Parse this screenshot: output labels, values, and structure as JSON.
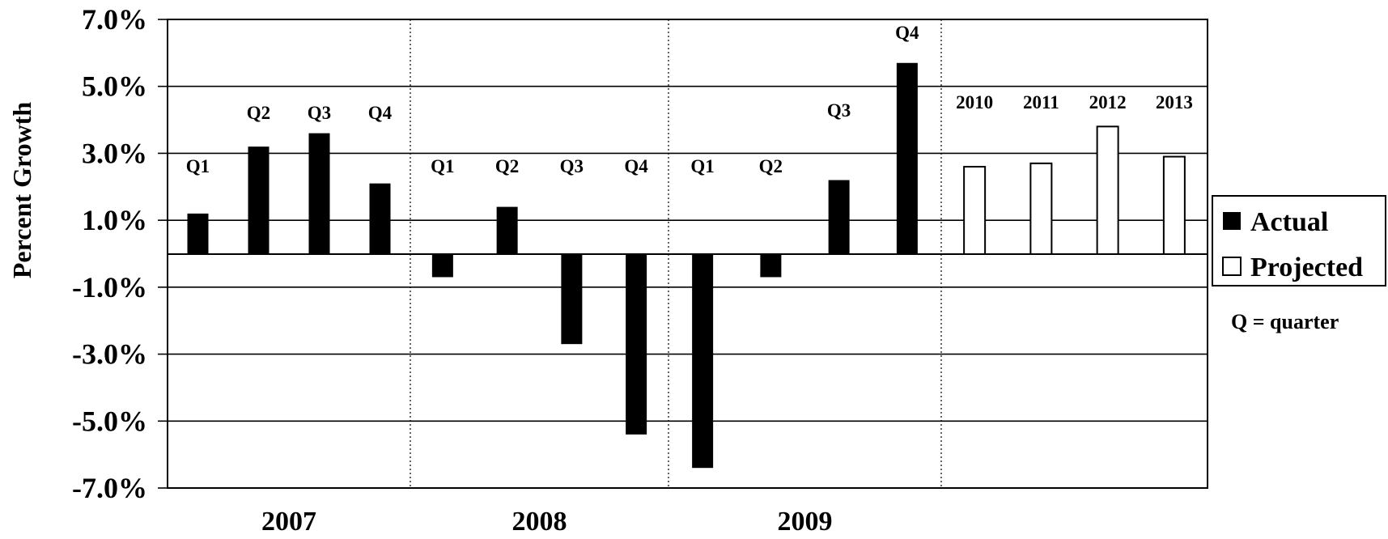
{
  "chart_data": {
    "type": "bar",
    "ylabel": "Percent Growth",
    "yticks": [
      "7.0%",
      "5.0%",
      "3.0%",
      "1.0%",
      "-1.0%",
      "-3.0%",
      "-5.0%",
      "-7.0%"
    ],
    "yticks_values": [
      7,
      5,
      3,
      1,
      -1,
      -3,
      -5,
      -7
    ],
    "ylim": [
      -7,
      7
    ],
    "grid": true,
    "legend_position": "right",
    "groups": [
      {
        "year": "2007",
        "bars": [
          {
            "label": "Q1",
            "value": 1.2,
            "series": "Actual"
          },
          {
            "label": "Q2",
            "value": 3.2,
            "series": "Actual"
          },
          {
            "label": "Q3",
            "value": 3.6,
            "series": "Actual"
          },
          {
            "label": "Q4",
            "value": 2.1,
            "series": "Actual"
          }
        ]
      },
      {
        "year": "2008",
        "bars": [
          {
            "label": "Q1",
            "value": -0.7,
            "series": "Actual"
          },
          {
            "label": "Q2",
            "value": 1.4,
            "series": "Actual"
          },
          {
            "label": "Q3",
            "value": -2.7,
            "series": "Actual"
          },
          {
            "label": "Q4",
            "value": -5.4,
            "series": "Actual"
          }
        ]
      },
      {
        "year": "2009",
        "bars": [
          {
            "label": "Q1",
            "value": -6.4,
            "series": "Actual"
          },
          {
            "label": "Q2",
            "value": -0.7,
            "series": "Actual"
          },
          {
            "label": "Q3",
            "value": 2.2,
            "series": "Actual"
          },
          {
            "label": "Q4",
            "value": 5.7,
            "series": "Actual"
          }
        ]
      },
      {
        "year": "",
        "bars": [
          {
            "label": "2010",
            "value": 2.6,
            "series": "Projected"
          },
          {
            "label": "2011",
            "value": 2.7,
            "series": "Projected"
          },
          {
            "label": "2012",
            "value": 3.8,
            "series": "Projected"
          },
          {
            "label": "2013",
            "value": 2.9,
            "series": "Projected"
          }
        ]
      }
    ],
    "series": [
      {
        "name": "Actual",
        "color": "#000000"
      },
      {
        "name": "Projected",
        "color": "#ffffff"
      }
    ]
  },
  "legend": {
    "actual_label": "Actual",
    "projected_label": "Projected",
    "note": "Q = quarter"
  }
}
